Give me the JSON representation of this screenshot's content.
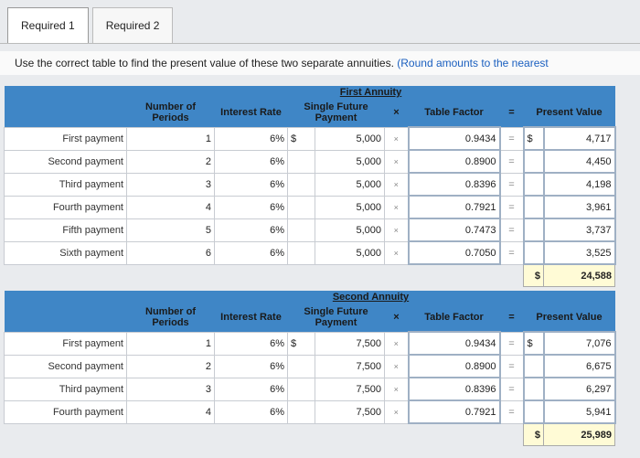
{
  "tabs": [
    "Required 1",
    "Required 2"
  ],
  "instruction": {
    "main": "Use the correct table to find the present value of these two separate annuities.",
    "round": "(Round amounts to the nearest"
  },
  "headers": {
    "periods": "Number of Periods",
    "rate": "Interest Rate",
    "sfp": "Single Future Payment",
    "times": "×",
    "factor": "Table Factor",
    "equals": "=",
    "pv": "Present Value"
  },
  "first": {
    "title": "First Annuity",
    "rows": [
      {
        "label": "First payment",
        "period": "1",
        "rate": "6%",
        "dollar": "$",
        "amount": "5,000",
        "factor": "0.9434",
        "pv_dollar": "$",
        "pv": "4,717"
      },
      {
        "label": "Second payment",
        "period": "2",
        "rate": "6%",
        "dollar": "",
        "amount": "5,000",
        "factor": "0.8900",
        "pv_dollar": "",
        "pv": "4,450"
      },
      {
        "label": "Third payment",
        "period": "3",
        "rate": "6%",
        "dollar": "",
        "amount": "5,000",
        "factor": "0.8396",
        "pv_dollar": "",
        "pv": "4,198"
      },
      {
        "label": "Fourth payment",
        "period": "4",
        "rate": "6%",
        "dollar": "",
        "amount": "5,000",
        "factor": "0.7921",
        "pv_dollar": "",
        "pv": "3,961"
      },
      {
        "label": "Fifth payment",
        "period": "5",
        "rate": "6%",
        "dollar": "",
        "amount": "5,000",
        "factor": "0.7473",
        "pv_dollar": "",
        "pv": "3,737"
      },
      {
        "label": "Sixth payment",
        "period": "6",
        "rate": "6%",
        "dollar": "",
        "amount": "5,000",
        "factor": "0.7050",
        "pv_dollar": "",
        "pv": "3,525"
      }
    ],
    "total_dollar": "$",
    "total": "24,588"
  },
  "second": {
    "title": "Second Annuity",
    "rows": [
      {
        "label": "First payment",
        "period": "1",
        "rate": "6%",
        "dollar": "$",
        "amount": "7,500",
        "factor": "0.9434",
        "pv_dollar": "$",
        "pv": "7,076"
      },
      {
        "label": "Second payment",
        "period": "2",
        "rate": "6%",
        "dollar": "",
        "amount": "7,500",
        "factor": "0.8900",
        "pv_dollar": "",
        "pv": "6,675"
      },
      {
        "label": "Third payment",
        "period": "3",
        "rate": "6%",
        "dollar": "",
        "amount": "7,500",
        "factor": "0.8396",
        "pv_dollar": "",
        "pv": "6,297"
      },
      {
        "label": "Fourth payment",
        "period": "4",
        "rate": "6%",
        "dollar": "",
        "amount": "7,500",
        "factor": "0.7921",
        "pv_dollar": "",
        "pv": "5,941"
      }
    ],
    "total_dollar": "$",
    "total": "25,989"
  }
}
